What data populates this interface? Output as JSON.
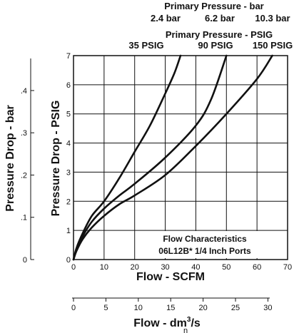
{
  "chart_data": {
    "type": "line",
    "header": {
      "bar_title": "Primary Pressure - bar",
      "bar_values": [
        "2.4 bar",
        "6.2 bar",
        "10.3 bar"
      ],
      "psig_title": "Primary Pressure - PSIG",
      "psig_values": [
        "35 PSIG",
        "90 PSIG",
        "150 PSIG"
      ]
    },
    "annotation": {
      "line1": "Flow Characteristics",
      "line2": "06L12B* 1/4 Inch Ports"
    },
    "xlabel": "Flow - SCFM",
    "ylabel": "Pressure Drop - PSIG",
    "ylabel_bar": "Pressure Drop - bar",
    "xlabel_metric": "Flow - dm",
    "xlabel_metric_sup": "3",
    "xlabel_metric_end": "/s",
    "xlabel_metric_sub": "n",
    "xlim": [
      0,
      70
    ],
    "ylim": [
      0,
      7
    ],
    "x_ticks": [
      "0",
      "10",
      "20",
      "30",
      "40",
      "50",
      "60",
      "70"
    ],
    "y_ticks": [
      "0",
      "1",
      "2",
      "3",
      "4",
      "5",
      "6",
      "7"
    ],
    "bar_ticks": [
      "0",
      ".1",
      ".2",
      ".3",
      ".4"
    ],
    "metric_ticks": [
      "0",
      "5",
      "10",
      "15",
      "20",
      "25",
      "30"
    ],
    "grid": true,
    "series": [
      {
        "name": "35 PSIG",
        "x": [
          0,
          1,
          3,
          6,
          10,
          15,
          20,
          25,
          30,
          33,
          35
        ],
        "y": [
          0,
          0.4,
          0.9,
          1.5,
          2.0,
          2.8,
          3.7,
          4.6,
          5.7,
          6.4,
          7.0
        ]
      },
      {
        "name": "90 PSIG",
        "x": [
          0,
          1,
          3,
          6,
          10,
          15,
          20,
          30,
          40,
          45,
          50
        ],
        "y": [
          0,
          0.35,
          0.8,
          1.3,
          1.75,
          2.2,
          2.6,
          3.5,
          4.6,
          5.5,
          7.0
        ]
      },
      {
        "name": "150 PSIG",
        "x": [
          0,
          1,
          3,
          6,
          10,
          15,
          20,
          30,
          40,
          50,
          60,
          65
        ],
        "y": [
          0,
          0.3,
          0.7,
          1.1,
          1.5,
          1.9,
          2.2,
          2.9,
          3.9,
          5.0,
          6.2,
          7.0
        ]
      }
    ]
  }
}
